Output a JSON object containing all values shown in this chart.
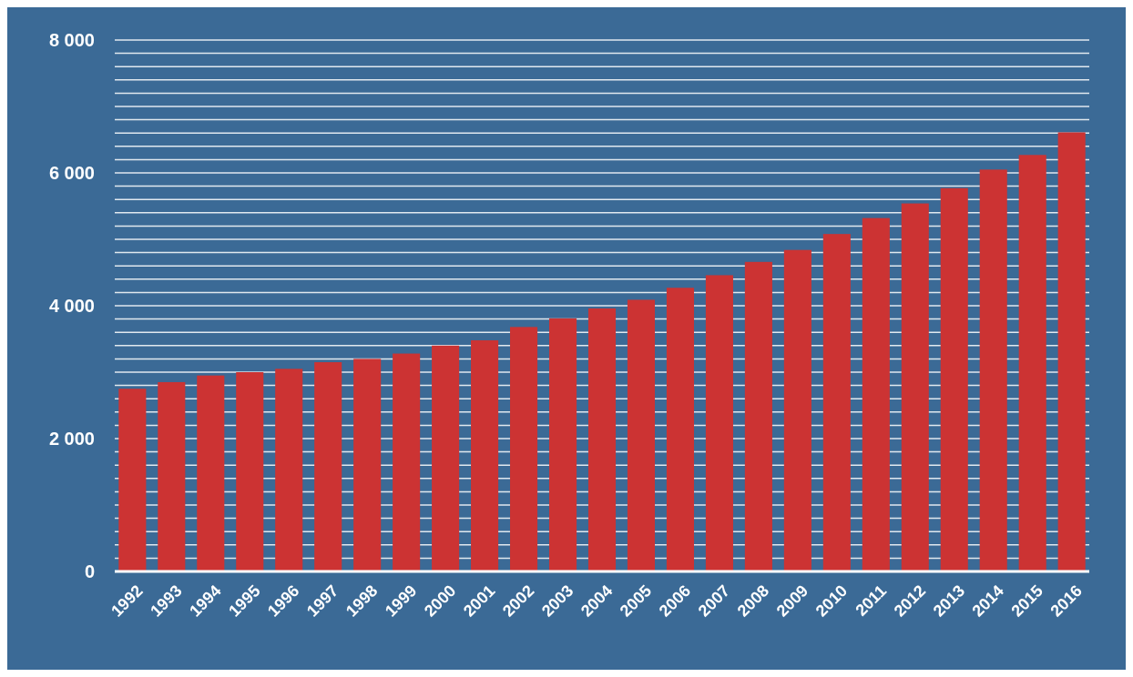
{
  "chart_data": {
    "type": "bar",
    "categories": [
      "1992",
      "1993",
      "1994",
      "1995",
      "1996",
      "1997",
      "1998",
      "1999",
      "2000",
      "2001",
      "2002",
      "2003",
      "2004",
      "2005",
      "2006",
      "2007",
      "2008",
      "2009",
      "2010",
      "2011",
      "2012",
      "2013",
      "2014",
      "2015",
      "2016"
    ],
    "values": [
      2750,
      2850,
      2950,
      3000,
      3050,
      3150,
      3200,
      3280,
      3400,
      3480,
      3680,
      3810,
      3960,
      4090,
      4270,
      4460,
      4660,
      4840,
      5080,
      5320,
      5540,
      5770,
      6050,
      6270,
      6610
    ],
    "color": "#cc3333",
    "ylim": [
      0,
      8000
    ],
    "yticks": [
      {
        "value": 0,
        "label": "0"
      },
      {
        "value": 200,
        "label": null
      },
      {
        "value": 400,
        "label": null
      },
      {
        "value": 600,
        "label": null
      },
      {
        "value": 800,
        "label": null
      },
      {
        "value": 1000,
        "label": null
      },
      {
        "value": 1200,
        "label": null
      },
      {
        "value": 1400,
        "label": null
      },
      {
        "value": 1600,
        "label": null
      },
      {
        "value": 1800,
        "label": null
      },
      {
        "value": 2000,
        "label": "2 000"
      },
      {
        "value": 2200,
        "label": null
      },
      {
        "value": 2400,
        "label": null
      },
      {
        "value": 2600,
        "label": null
      },
      {
        "value": 2800,
        "label": null
      },
      {
        "value": 3000,
        "label": null
      },
      {
        "value": 3200,
        "label": null
      },
      {
        "value": 3400,
        "label": null
      },
      {
        "value": 3600,
        "label": null
      },
      {
        "value": 3800,
        "label": null
      },
      {
        "value": 4000,
        "label": "4 000"
      },
      {
        "value": 4200,
        "label": null
      },
      {
        "value": 4400,
        "label": null
      },
      {
        "value": 4600,
        "label": null
      },
      {
        "value": 4800,
        "label": null
      },
      {
        "value": 5000,
        "label": null
      },
      {
        "value": 5200,
        "label": null
      },
      {
        "value": 5400,
        "label": null
      },
      {
        "value": 5600,
        "label": null
      },
      {
        "value": 5800,
        "label": null
      },
      {
        "value": 6000,
        "label": "6 000"
      },
      {
        "value": 6200,
        "label": null
      },
      {
        "value": 6400,
        "label": null
      },
      {
        "value": 6600,
        "label": null
      },
      {
        "value": 6800,
        "label": null
      },
      {
        "value": 7000,
        "label": null
      },
      {
        "value": 7200,
        "label": null
      },
      {
        "value": 7400,
        "label": null
      },
      {
        "value": 7600,
        "label": null
      },
      {
        "value": 7800,
        "label": null
      },
      {
        "value": 8000,
        "label": "8 000"
      }
    ],
    "grid": "y"
  }
}
